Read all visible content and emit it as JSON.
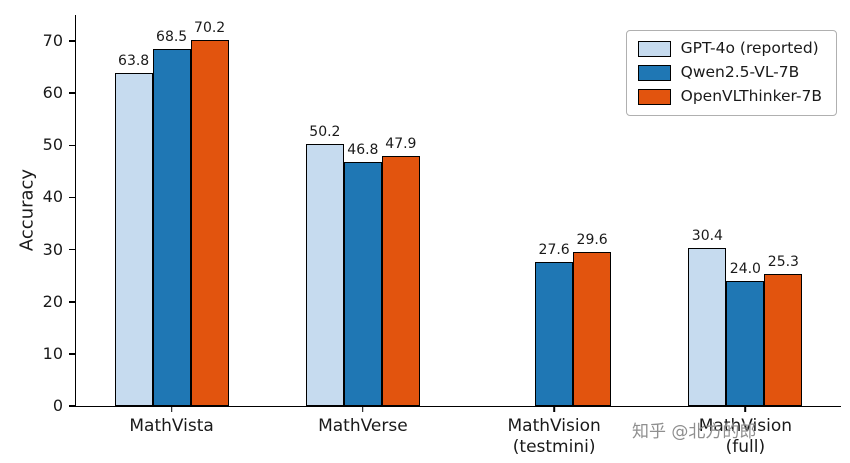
{
  "watermark": "知乎 @北方的郎",
  "chart_data": {
    "type": "bar",
    "title": "",
    "xlabel": "",
    "ylabel": "Accuracy",
    "categories": [
      "MathVista",
      "MathVerse",
      "MathVision\n(testmini)",
      "MathVision\n(full)"
    ],
    "series": [
      {
        "name": "GPT-4o (reported)",
        "color": "#c6dbef",
        "values": [
          63.8,
          50.2,
          null,
          30.4
        ]
      },
      {
        "name": "Qwen2.5-VL-7B",
        "color": "#1f77b4",
        "values": [
          68.5,
          46.8,
          27.6,
          24.0
        ]
      },
      {
        "name": "OpenVLThinker-7B",
        "color": "#e2540e",
        "values": [
          70.2,
          47.9,
          29.6,
          25.3
        ]
      }
    ],
    "yticks": [
      0,
      10,
      20,
      30,
      40,
      50,
      60,
      70
    ],
    "ylim": [
      0,
      75
    ],
    "grid": false,
    "legend_position": "top-right",
    "bar_edge_color": "#000000"
  }
}
